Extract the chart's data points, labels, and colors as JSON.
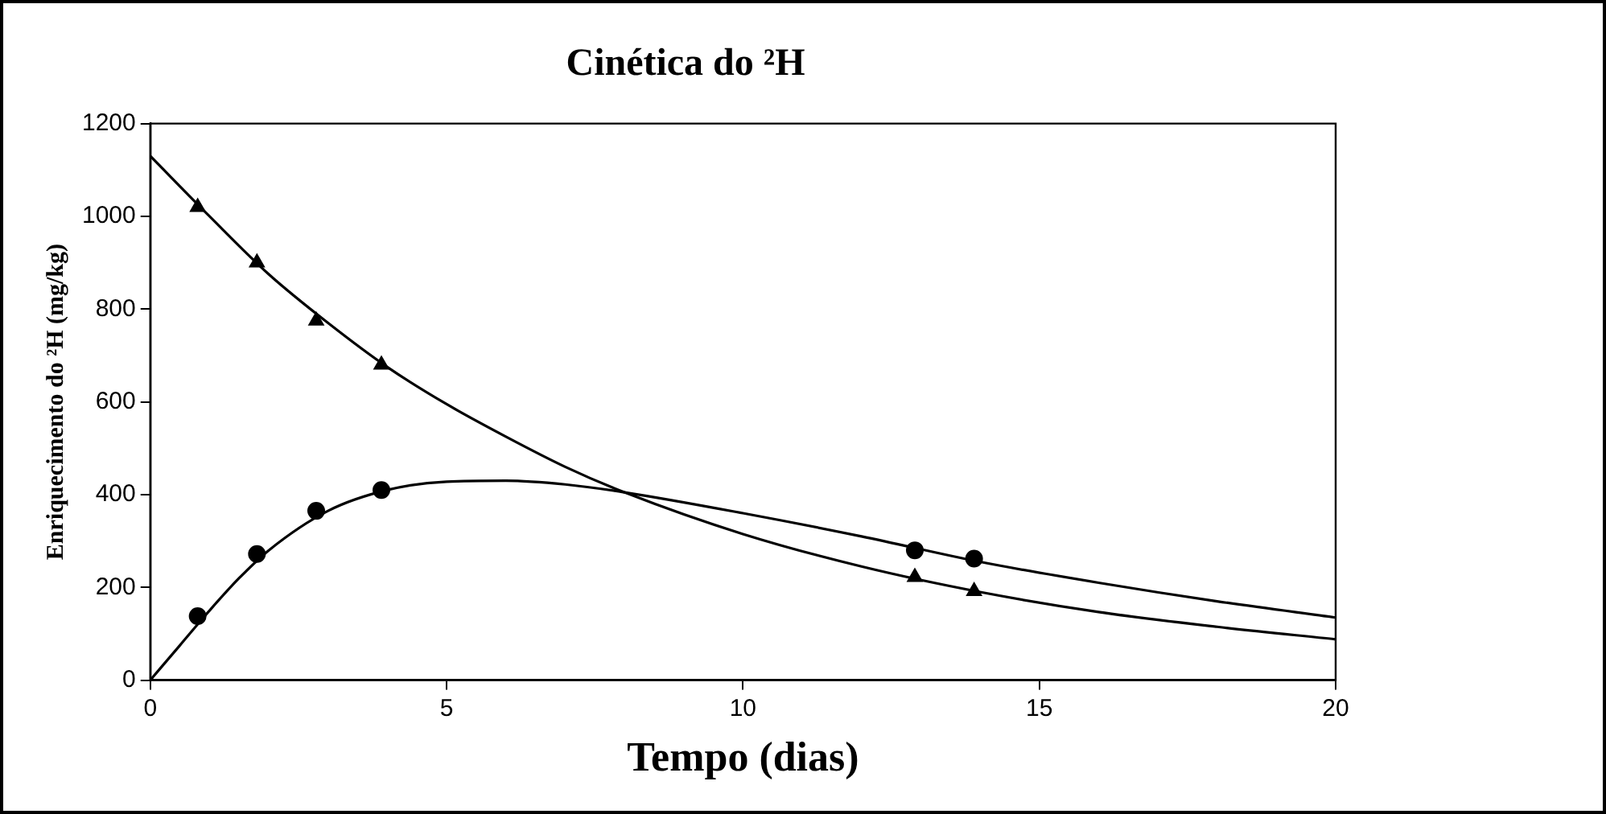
{
  "chart_data": {
    "type": "line",
    "title": "Cinética do ²H",
    "xlabel": "Tempo (dias)",
    "ylabel": "Enriquecimento do ²H (mg/kg)",
    "xlim": [
      0,
      20
    ],
    "xticks": [
      0,
      5,
      10,
      15,
      20
    ],
    "ylim": [
      0,
      1200
    ],
    "yticks": [
      0,
      200,
      400,
      600,
      800,
      1000,
      1200
    ],
    "grid": false,
    "legend": false,
    "series": [
      {
        "type": "line",
        "marker": "none",
        "color": "#000000",
        "x": [
          0,
          1,
          2,
          3,
          4,
          5,
          6,
          7,
          8,
          10,
          12,
          14,
          16,
          18,
          20
        ],
        "values": [
          1130,
          1000,
          875,
          770,
          675,
          595,
          525,
          460,
          405,
          315,
          245,
          190,
          147,
          115,
          88
        ]
      },
      {
        "type": "line",
        "marker": "none",
        "color": "#000000",
        "x": [
          0,
          0.5,
          1,
          1.5,
          2,
          3,
          4,
          5,
          6,
          7,
          8,
          10,
          12,
          14,
          16,
          18,
          20
        ],
        "values": [
          0,
          75,
          150,
          220,
          280,
          365,
          410,
          428,
          430,
          422,
          405,
          360,
          310,
          255,
          210,
          170,
          135
        ]
      },
      {
        "type": "scatter",
        "marker": "triangle",
        "color": "#000000",
        "x": [
          0.8,
          1.8,
          2.8,
          3.9,
          12.9,
          13.9
        ],
        "values": [
          1020,
          900,
          775,
          680,
          222,
          192
        ]
      },
      {
        "type": "scatter",
        "marker": "circle",
        "color": "#000000",
        "x": [
          0.8,
          1.8,
          2.8,
          3.9,
          12.9,
          13.9
        ],
        "values": [
          138,
          272,
          365,
          410,
          280,
          262
        ]
      }
    ]
  }
}
